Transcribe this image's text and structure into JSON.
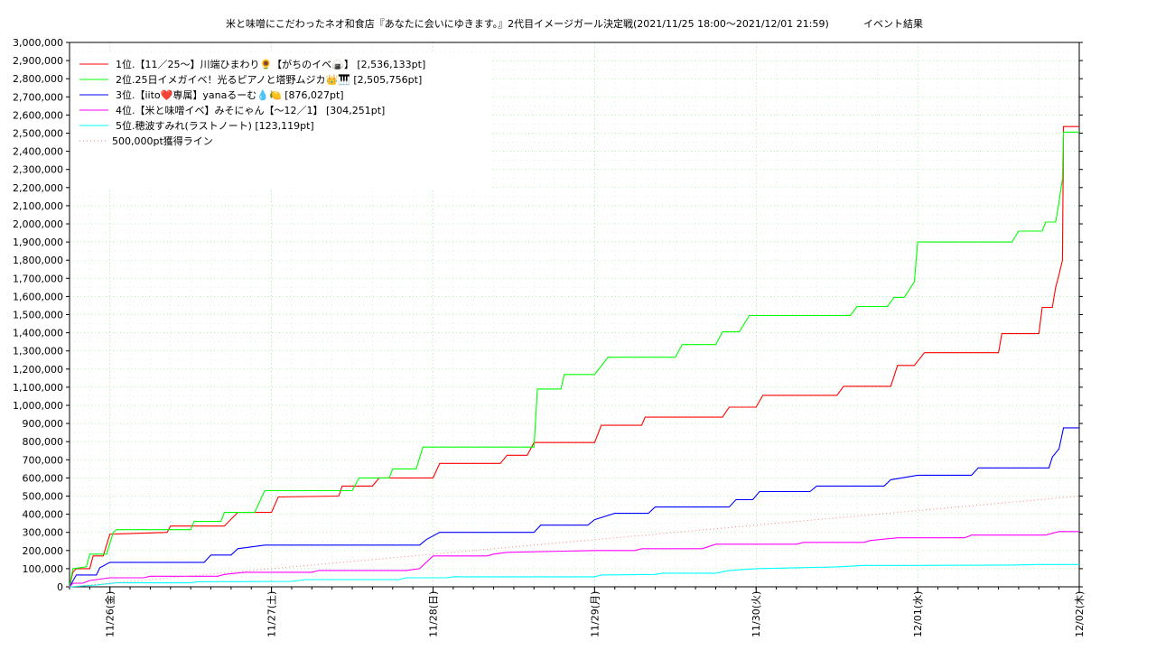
{
  "chart_data": {
    "type": "line",
    "title": "米と味噌にこだわったネオ和食店『あなたに会いにゆきます。』2代目イメージガール決定戦(2021/11/25 18:00～2021/12/01 21:59)",
    "subtitle": "イベント結果",
    "xlabel": "",
    "ylabel": "",
    "ylim": [
      0,
      3000000
    ],
    "xlim": [
      "2021/11/25 18:00",
      "2021/12/02 00:00"
    ],
    "grid": true,
    "legend_position": "top-left",
    "y_ticks": [
      {
        "value": 0,
        "label": "0"
      },
      {
        "value": 100000,
        "label": "100,000"
      },
      {
        "value": 200000,
        "label": "200,000"
      },
      {
        "value": 300000,
        "label": "300,000"
      },
      {
        "value": 400000,
        "label": "400,000"
      },
      {
        "value": 500000,
        "label": "500,000"
      },
      {
        "value": 600000,
        "label": "600,000"
      },
      {
        "value": 700000,
        "label": "700,000"
      },
      {
        "value": 800000,
        "label": "800,000"
      },
      {
        "value": 900000,
        "label": "900,000"
      },
      {
        "value": 1000000,
        "label": "1,000,000"
      },
      {
        "value": 1100000,
        "label": "1,100,000"
      },
      {
        "value": 1200000,
        "label": "1,200,000"
      },
      {
        "value": 1300000,
        "label": "1,300,000"
      },
      {
        "value": 1400000,
        "label": "1,400,000"
      },
      {
        "value": 1500000,
        "label": "1,500,000"
      },
      {
        "value": 1600000,
        "label": "1,600,000"
      },
      {
        "value": 1700000,
        "label": "1,700,000"
      },
      {
        "value": 1800000,
        "label": "1,800,000"
      },
      {
        "value": 1900000,
        "label": "1,900,000"
      },
      {
        "value": 2000000,
        "label": "2,000,000"
      },
      {
        "value": 2100000,
        "label": "2,100,000"
      },
      {
        "value": 2200000,
        "label": "2,200,000"
      },
      {
        "value": 2300000,
        "label": "2,300,000"
      },
      {
        "value": 2400000,
        "label": "2,400,000"
      },
      {
        "value": 2500000,
        "label": "2,500,000"
      },
      {
        "value": 2600000,
        "label": "2,600,000"
      },
      {
        "value": 2700000,
        "label": "2,700,000"
      },
      {
        "value": 2800000,
        "label": "2,800,000"
      },
      {
        "value": 2900000,
        "label": "2,900,000"
      },
      {
        "value": 3000000,
        "label": "3,000,000"
      }
    ],
    "x_ticks": [
      {
        "value": "2021/11/26 00:00",
        "label": "11/26(金)"
      },
      {
        "value": "2021/11/27 00:00",
        "label": "11/27(土)"
      },
      {
        "value": "2021/11/28 00:00",
        "label": "11/28(日)"
      },
      {
        "value": "2021/11/29 00:00",
        "label": "11/29(月)"
      },
      {
        "value": "2021/11/30 00:00",
        "label": "11/30(火)"
      },
      {
        "value": "2021/12/01 00:00",
        "label": "12/01(水)"
      },
      {
        "value": "2021/12/02 00:00",
        "label": "12/02(木)"
      }
    ],
    "series": [
      {
        "name": "1位.【11／25～】川端ひまわり🌻【がちのイベ🍙】 [2,536,133pt]",
        "color": "#ff0000",
        "points": [
          [
            "2021/11/25 18:00",
            0
          ],
          [
            "2021/11/25 18:30",
            80000
          ],
          [
            "2021/11/25 19:00",
            100000
          ],
          [
            "2021/11/25 21:00",
            100000
          ],
          [
            "2021/11/25 21:30",
            170000
          ],
          [
            "2021/11/25 23:00",
            170000
          ],
          [
            "2021/11/26 00:00",
            290000
          ],
          [
            "2021/11/26 08:30",
            300000
          ],
          [
            "2021/11/26 09:00",
            335000
          ],
          [
            "2021/11/26 17:00",
            335000
          ],
          [
            "2021/11/26 19:00",
            410000
          ],
          [
            "2021/11/27 00:00",
            410000
          ],
          [
            "2021/11/27 01:00",
            495000
          ],
          [
            "2021/11/27 10:00",
            500000
          ],
          [
            "2021/11/27 10:30",
            555000
          ],
          [
            "2021/11/27 15:00",
            555000
          ],
          [
            "2021/11/27 16:00",
            600000
          ],
          [
            "2021/11/28 00:00",
            600000
          ],
          [
            "2021/11/28 01:00",
            680000
          ],
          [
            "2021/11/28 10:00",
            680000
          ],
          [
            "2021/11/28 11:00",
            725000
          ],
          [
            "2021/11/28 14:00",
            725000
          ],
          [
            "2021/11/28 15:00",
            795000
          ],
          [
            "2021/11/29 00:00",
            795000
          ],
          [
            "2021/11/29 01:00",
            890000
          ],
          [
            "2021/11/29 07:00",
            890000
          ],
          [
            "2021/11/29 07:30",
            935000
          ],
          [
            "2021/11/29 19:00",
            935000
          ],
          [
            "2021/11/29 20:00",
            990000
          ],
          [
            "2021/11/30 00:00",
            990000
          ],
          [
            "2021/11/30 01:00",
            1055000
          ],
          [
            "2021/11/30 12:00",
            1055000
          ],
          [
            "2021/11/30 13:00",
            1105000
          ],
          [
            "2021/11/30 20:00",
            1105000
          ],
          [
            "2021/11/30 21:00",
            1220000
          ],
          [
            "2021/11/30 23:30",
            1220000
          ],
          [
            "2021/12/01 01:00",
            1290000
          ],
          [
            "2021/12/01 12:00",
            1290000
          ],
          [
            "2021/12/01 12:30",
            1395000
          ],
          [
            "2021/12/01 18:00",
            1395000
          ],
          [
            "2021/12/01 18:30",
            1540000
          ],
          [
            "2021/12/01 20:00",
            1540000
          ],
          [
            "2021/12/01 20:30",
            1650000
          ],
          [
            "2021/12/01 21:00",
            1720000
          ],
          [
            "2021/12/01 21:30",
            1800000
          ],
          [
            "2021/12/01 21:40",
            2536133
          ],
          [
            "2021/12/02 00:00",
            2536133
          ]
        ]
      },
      {
        "name": "2位.25日イメガイベ！光るピアノと塔野ムジカ👑🎹 [2,505,756pt]",
        "color": "#00ff00",
        "points": [
          [
            "2021/11/25 18:00",
            0
          ],
          [
            "2021/11/25 18:30",
            100000
          ],
          [
            "2021/11/25 20:30",
            110000
          ],
          [
            "2021/11/25 21:00",
            180000
          ],
          [
            "2021/11/25 23:30",
            180000
          ],
          [
            "2021/11/26 00:30",
            300000
          ],
          [
            "2021/11/26 01:00",
            315000
          ],
          [
            "2021/11/26 12:00",
            315000
          ],
          [
            "2021/11/26 12:30",
            360000
          ],
          [
            "2021/11/26 16:30",
            360000
          ],
          [
            "2021/11/26 17:00",
            410000
          ],
          [
            "2021/11/26 21:30",
            410000
          ],
          [
            "2021/11/26 23:00",
            530000
          ],
          [
            "2021/11/27 12:00",
            530000
          ],
          [
            "2021/11/27 13:00",
            600000
          ],
          [
            "2021/11/27 17:30",
            600000
          ],
          [
            "2021/11/27 18:00",
            650000
          ],
          [
            "2021/11/27 21:30",
            650000
          ],
          [
            "2021/11/27 22:30",
            770000
          ],
          [
            "2021/11/28 15:00",
            770000
          ],
          [
            "2021/11/28 15:30",
            1090000
          ],
          [
            "2021/11/28 19:00",
            1090000
          ],
          [
            "2021/11/28 19:30",
            1170000
          ],
          [
            "2021/11/29 00:00",
            1170000
          ],
          [
            "2021/11/29 02:00",
            1265000
          ],
          [
            "2021/11/29 12:00",
            1265000
          ],
          [
            "2021/11/29 13:00",
            1335000
          ],
          [
            "2021/11/29 18:00",
            1335000
          ],
          [
            "2021/11/29 19:00",
            1405000
          ],
          [
            "2021/11/29 21:30",
            1405000
          ],
          [
            "2021/11/29 23:00",
            1495000
          ],
          [
            "2021/11/30 14:00",
            1495000
          ],
          [
            "2021/11/30 15:00",
            1545000
          ],
          [
            "2021/11/30 19:30",
            1545000
          ],
          [
            "2021/11/30 20:30",
            1595000
          ],
          [
            "2021/11/30 22:00",
            1595000
          ],
          [
            "2021/11/30 23:30",
            1680000
          ],
          [
            "2021/12/01 00:00",
            1900000
          ],
          [
            "2021/12/01 14:00",
            1900000
          ],
          [
            "2021/12/01 15:00",
            1960000
          ],
          [
            "2021/12/01 18:30",
            1960000
          ],
          [
            "2021/12/01 19:00",
            2010000
          ],
          [
            "2021/12/01 20:30",
            2010000
          ],
          [
            "2021/12/01 21:00",
            2120000
          ],
          [
            "2021/12/01 21:30",
            2250000
          ],
          [
            "2021/12/01 21:40",
            2505756
          ],
          [
            "2021/12/02 00:00",
            2505756
          ]
        ]
      },
      {
        "name": "3位.【iito❤️専属】yanaるーむ💧🍋 [876,027pt]",
        "color": "#0000ff",
        "points": [
          [
            "2021/11/25 18:00",
            0
          ],
          [
            "2021/11/25 19:00",
            65000
          ],
          [
            "2021/11/25 22:00",
            65000
          ],
          [
            "2021/11/25 22:30",
            105000
          ],
          [
            "2021/11/26 00:00",
            135000
          ],
          [
            "2021/11/26 14:00",
            135000
          ],
          [
            "2021/11/26 15:00",
            175000
          ],
          [
            "2021/11/26 18:00",
            175000
          ],
          [
            "2021/11/26 19:00",
            210000
          ],
          [
            "2021/11/26 23:00",
            230000
          ],
          [
            "2021/11/27 22:00",
            230000
          ],
          [
            "2021/11/27 23:00",
            260000
          ],
          [
            "2021/11/28 01:00",
            300000
          ],
          [
            "2021/11/28 15:00",
            300000
          ],
          [
            "2021/11/28 16:00",
            340000
          ],
          [
            "2021/11/28 23:00",
            340000
          ],
          [
            "2021/11/29 00:00",
            370000
          ],
          [
            "2021/11/29 03:00",
            405000
          ],
          [
            "2021/11/29 08:00",
            405000
          ],
          [
            "2021/11/29 09:00",
            440000
          ],
          [
            "2021/11/29 20:00",
            440000
          ],
          [
            "2021/11/29 21:00",
            480000
          ],
          [
            "2021/11/29 23:30",
            480000
          ],
          [
            "2021/11/30 00:30",
            525000
          ],
          [
            "2021/11/30 08:00",
            525000
          ],
          [
            "2021/11/30 09:00",
            555000
          ],
          [
            "2021/11/30 19:00",
            555000
          ],
          [
            "2021/11/30 20:00",
            590000
          ],
          [
            "2021/12/01 00:00",
            615000
          ],
          [
            "2021/12/01 08:00",
            615000
          ],
          [
            "2021/12/01 09:00",
            655000
          ],
          [
            "2021/12/01 19:30",
            655000
          ],
          [
            "2021/12/01 20:00",
            715000
          ],
          [
            "2021/12/01 21:00",
            760000
          ],
          [
            "2021/12/01 21:40",
            876027
          ],
          [
            "2021/12/02 00:00",
            876027
          ]
        ]
      },
      {
        "name": "4位.【米と味噌イベ】みそにゃん【～12／1】 [304,251pt]",
        "color": "#ff00ff",
        "points": [
          [
            "2021/11/25 18:00",
            0
          ],
          [
            "2021/11/25 18:30",
            20000
          ],
          [
            "2021/11/25 20:00",
            20000
          ],
          [
            "2021/11/25 21:00",
            35000
          ],
          [
            "2021/11/26 00:00",
            50000
          ],
          [
            "2021/11/26 05:00",
            50000
          ],
          [
            "2021/11/26 06:00",
            58000
          ],
          [
            "2021/11/26 16:00",
            58000
          ],
          [
            "2021/11/26 17:00",
            68000
          ],
          [
            "2021/11/26 20:00",
            80000
          ],
          [
            "2021/11/27 06:00",
            80000
          ],
          [
            "2021/11/27 07:00",
            90000
          ],
          [
            "2021/11/27 20:00",
            90000
          ],
          [
            "2021/11/27 22:00",
            100000
          ],
          [
            "2021/11/28 00:00",
            170000
          ],
          [
            "2021/11/28 08:00",
            170000
          ],
          [
            "2021/11/28 09:00",
            180000
          ],
          [
            "2021/11/28 11:00",
            190000
          ],
          [
            "2021/11/29 00:00",
            200000
          ],
          [
            "2021/11/29 06:00",
            200000
          ],
          [
            "2021/11/29 07:00",
            210000
          ],
          [
            "2021/11/29 16:00",
            210000
          ],
          [
            "2021/11/29 18:00",
            235000
          ],
          [
            "2021/11/30 06:00",
            235000
          ],
          [
            "2021/11/30 07:00",
            245000
          ],
          [
            "2021/11/30 16:00",
            245000
          ],
          [
            "2021/11/30 17:00",
            255000
          ],
          [
            "2021/11/30 21:00",
            270000
          ],
          [
            "2021/12/01 07:00",
            270000
          ],
          [
            "2021/12/01 08:00",
            285000
          ],
          [
            "2021/12/01 19:00",
            285000
          ],
          [
            "2021/12/01 21:00",
            304251
          ],
          [
            "2021/12/02 00:00",
            304251
          ]
        ]
      },
      {
        "name": "5位.穂波すみれ(ラストノート) [123,119pt]",
        "color": "#00ffff",
        "points": [
          [
            "2021/11/25 18:00",
            0
          ],
          [
            "2021/11/25 22:00",
            10000
          ],
          [
            "2021/11/26 01:00",
            22000
          ],
          [
            "2021/11/26 12:00",
            22000
          ],
          [
            "2021/11/26 13:00",
            28000
          ],
          [
            "2021/11/27 03:00",
            30000
          ],
          [
            "2021/11/27 05:00",
            40000
          ],
          [
            "2021/11/27 19:00",
            40000
          ],
          [
            "2021/11/27 20:00",
            50000
          ],
          [
            "2021/11/28 02:00",
            50000
          ],
          [
            "2021/11/28 03:00",
            55000
          ],
          [
            "2021/11/29 00:00",
            55000
          ],
          [
            "2021/11/29 01:00",
            65000
          ],
          [
            "2021/11/29 09:00",
            68000
          ],
          [
            "2021/11/29 10:00",
            75000
          ],
          [
            "2021/11/29 18:00",
            75000
          ],
          [
            "2021/11/29 20:00",
            90000
          ],
          [
            "2021/11/30 00:00",
            100000
          ],
          [
            "2021/11/30 06:00",
            105000
          ],
          [
            "2021/11/30 12:00",
            110000
          ],
          [
            "2021/11/30 16:00",
            118000
          ],
          [
            "2021/12/01 00:00",
            118000
          ],
          [
            "2021/12/01 14:00",
            120000
          ],
          [
            "2021/12/01 18:00",
            123119
          ],
          [
            "2021/12/02 00:00",
            123119
          ]
        ]
      },
      {
        "name": "500,000pt獲得ライン",
        "color": "#ff8080",
        "dotted": true,
        "points": [
          [
            "2021/11/25 18:00",
            0
          ],
          [
            "2021/12/02 00:00",
            500000
          ]
        ]
      }
    ]
  }
}
